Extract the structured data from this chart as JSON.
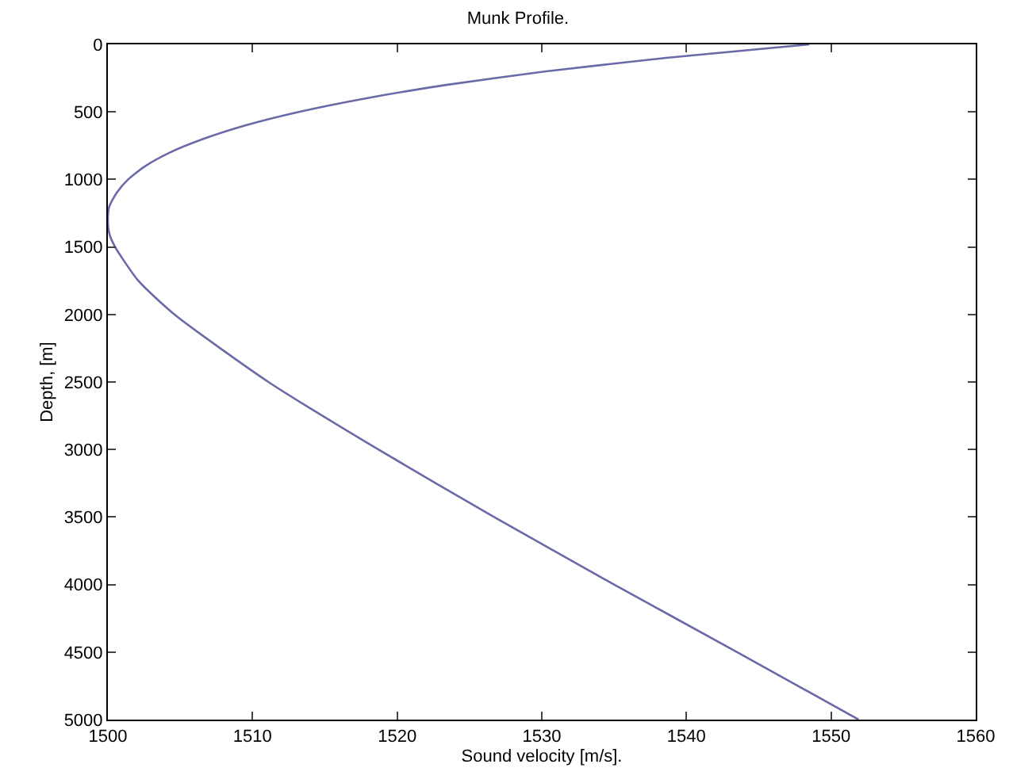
{
  "chart_data": {
    "type": "line",
    "title": "Munk Profile.",
    "xlabel": "Sound velocity [m/s].",
    "ylabel": "Depth, [m]",
    "series": [
      {
        "color": "#6a6aa8",
        "x": [
          1548.5,
          1538.6,
          1530.3,
          1523.4,
          1517.8,
          1513.2,
          1509.5,
          1506.6,
          1504.3,
          1502.6,
          1501.4,
          1500.6,
          1500.1,
          1500.0,
          1500.1,
          1500.5,
          1502.1,
          1504.6,
          1511.1,
          1518.7,
          1526.7,
          1535.0,
          1543.5,
          1551.9
        ],
        "values": [
          0,
          100,
          200,
          300,
          400,
          500,
          600,
          700,
          800,
          900,
          1000,
          1100,
          1200,
          1300,
          1400,
          1500,
          1750,
          2000,
          2500,
          3000,
          3500,
          4000,
          4500,
          5000
        ]
      }
    ],
    "xlim": [
      1500,
      1560
    ],
    "xticks": [
      1500,
      1510,
      1520,
      1530,
      1540,
      1550,
      1560
    ],
    "ylim": [
      5000,
      0
    ],
    "yticks": [
      0,
      500,
      1000,
      1500,
      2000,
      2500,
      3000,
      3500,
      4000,
      4500,
      5000
    ],
    "grid": false
  }
}
